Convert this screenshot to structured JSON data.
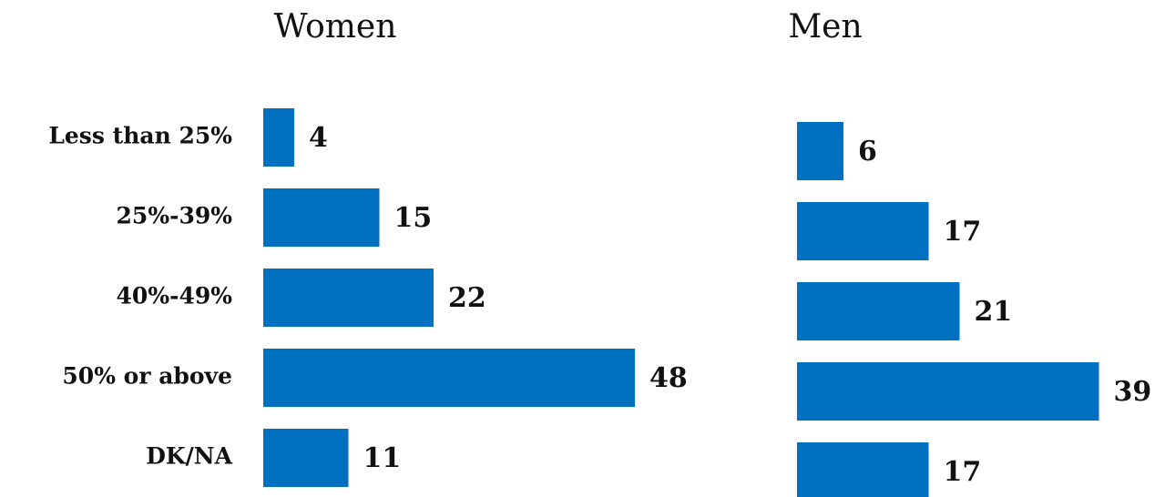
{
  "chart_data": [
    {
      "type": "hbar",
      "title": "Women",
      "categories": [
        "Less than 25%",
        "25%-39%",
        "40%-49%",
        "50% or above",
        "DK/NA"
      ],
      "values": [
        4,
        15,
        22,
        48,
        11
      ],
      "color": "#0070c0"
    },
    {
      "type": "hbar",
      "title": "Men",
      "values": [
        6,
        17,
        21,
        39,
        17
      ],
      "color": "#0070c0"
    }
  ]
}
